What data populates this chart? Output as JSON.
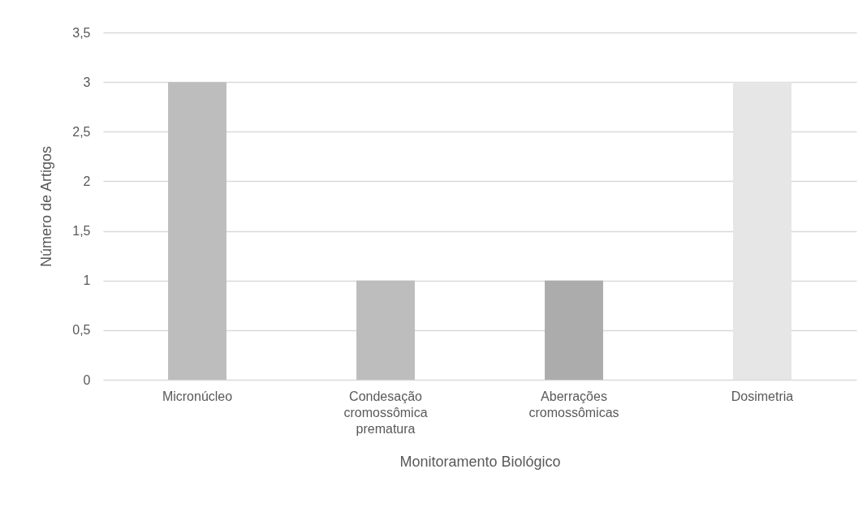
{
  "chart_data": {
    "type": "bar",
    "xlabel": "Monitoramento Biológico",
    "ylabel": "Número de Artigos",
    "categories": [
      "Micronúcleo",
      "Condesação cromossômica prematura",
      "Aberrações cromossômicas",
      "Dosimetria"
    ],
    "values": [
      3,
      1,
      1,
      3
    ],
    "colors": [
      "#bdbdbd",
      "#bdbdbd",
      "#acacac",
      "#e6e6e6"
    ],
    "ylim": [
      0,
      3.5
    ],
    "yticks": [
      0,
      {
        "value": 0.5,
        "label": "0,5"
      },
      1,
      {
        "value": 1.5,
        "label": "1,5"
      },
      2,
      {
        "value": 2.5,
        "label": "2,5"
      },
      3,
      {
        "value": 3.5,
        "label": "3,5"
      }
    ],
    "grid": "y"
  }
}
